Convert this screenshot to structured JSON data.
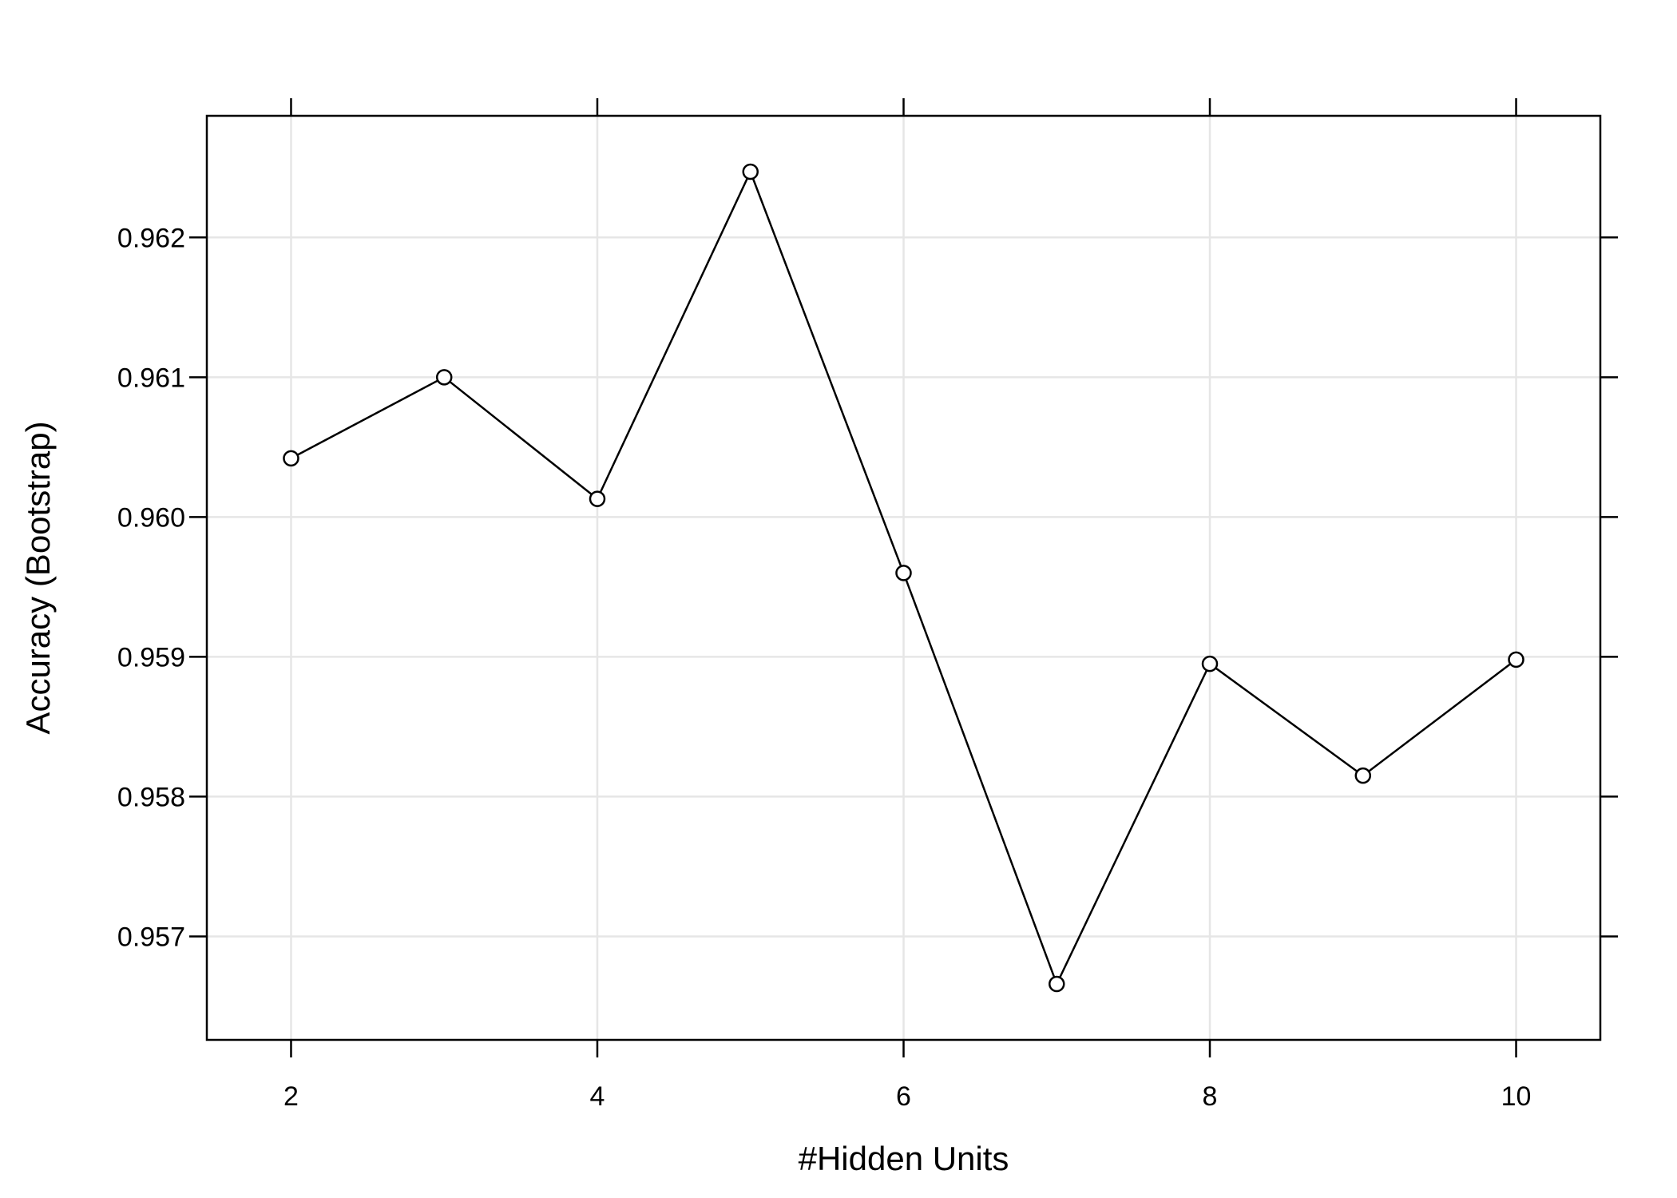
{
  "chart_data": {
    "type": "line",
    "title": "",
    "xlabel": "#Hidden Units",
    "ylabel": "Accuracy (Bootstrap)",
    "x": [
      2,
      3,
      4,
      5,
      6,
      7,
      8,
      9,
      10
    ],
    "y": [
      0.96042,
      0.961,
      0.96013,
      0.96247,
      0.9596,
      0.95666,
      0.95895,
      0.95815,
      0.95898
    ],
    "xlim": [
      1.45,
      10.55
    ],
    "ylim": [
      0.95626,
      0.96287
    ],
    "xticks": [
      2,
      4,
      6,
      8,
      10
    ],
    "xtick_labels": [
      "2",
      "4",
      "6",
      "8",
      "10"
    ],
    "yticks": [
      0.957,
      0.958,
      0.959,
      0.96,
      0.961,
      0.962
    ],
    "ytick_labels": [
      "0.957",
      "0.958",
      "0.959",
      "0.960",
      "0.961",
      "0.962"
    ],
    "grid": true,
    "legend": "none",
    "marker": "open-circle",
    "colors": {
      "line": "#000000",
      "grid": "#e6e6e6",
      "frame": "#000000"
    }
  }
}
